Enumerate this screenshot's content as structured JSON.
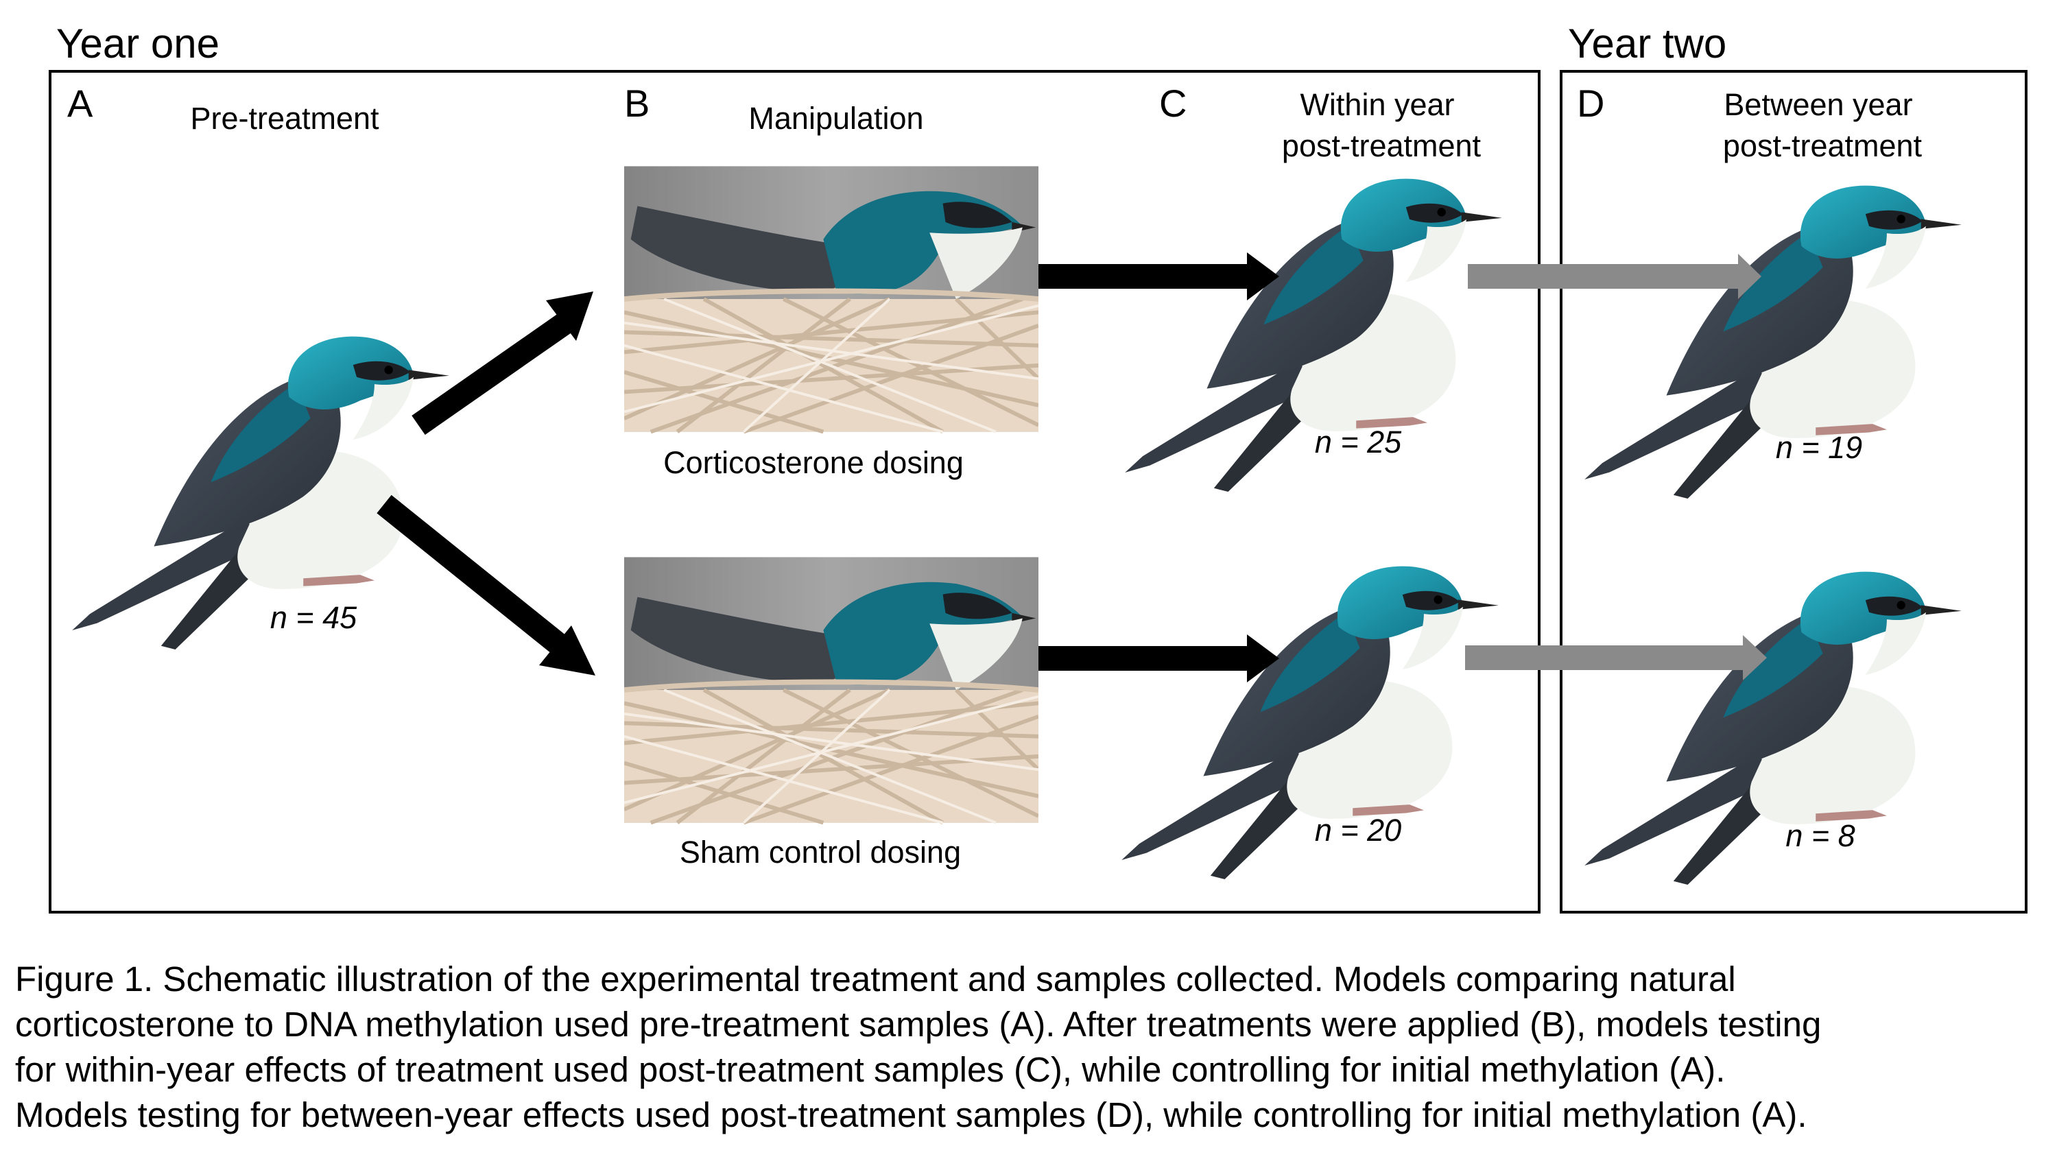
{
  "figure": {
    "year_one_label": "Year one",
    "year_two_label": "Year two",
    "panels": [
      {
        "letter": "A",
        "title_lines": [
          "Pre-treatment"
        ],
        "sample": "n = 45"
      },
      {
        "letter": "B",
        "title_lines": [
          "Manipulation"
        ],
        "nests": [
          "Corticosterone dosing",
          "Sham control dosing"
        ]
      },
      {
        "letter": "C",
        "title_lines": [
          "Within year",
          "post-treatment"
        ],
        "samples": [
          "n = 25",
          "n = 20"
        ]
      },
      {
        "letter": "D",
        "title_lines": [
          "Between year",
          "post-treatment"
        ],
        "samples": [
          "n = 19",
          "n = 8"
        ]
      }
    ],
    "colors": {
      "bird_head": "#1a8a9e",
      "bird_back": "#13697e",
      "bird_wing": "#3d4450",
      "bird_belly": "#f1f3ef",
      "treatment_arrow": "#000000",
      "followup_arrow": "#8a8a8a",
      "nest_straw": "#e6d6c3",
      "nest_bg": "#8f8f8f"
    }
  },
  "caption": {
    "lines": [
      "Figure 1. Schematic illustration of the experimental treatment and samples collected. Models comparing natural",
      "corticosterone to DNA methylation used pre-treatment samples (A). After treatments were applied (B), models testing",
      "for within-year effects of treatment used post-treatment samples (C), while controlling for initial methylation (A).",
      "Models testing for between-year effects used post-treatment samples (D), while controlling for initial methylation (A)."
    ]
  }
}
